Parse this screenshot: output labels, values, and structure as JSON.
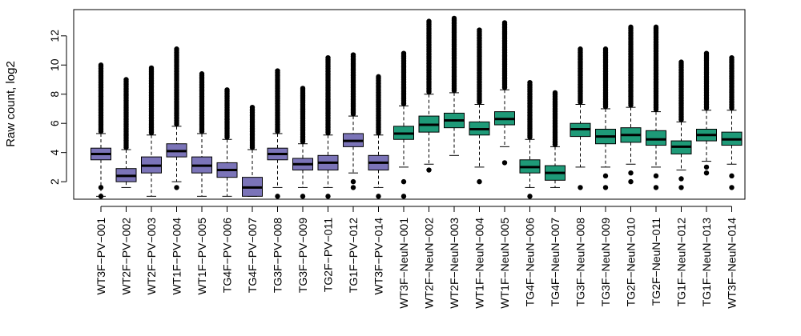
{
  "chart_data": {
    "type": "boxplot",
    "ylabel": "Raw count, log2",
    "xlabel": "",
    "ylim": [
      0.8,
      13.8
    ],
    "yticks": [
      2,
      4,
      6,
      8,
      10,
      12
    ],
    "colors": {
      "PV": "#7b74b8",
      "NeuN": "#1e9a78",
      "outline": "#000000"
    },
    "categories": [
      "WT3F−PV−001",
      "WT2F−PV−002",
      "WT2F−PV−003",
      "WT1F−PV−004",
      "WT1F−PV−005",
      "TG4F−PV−006",
      "TG4F−PV−007",
      "TG3F−PV−008",
      "TG3F−PV−009",
      "TG2F−PV−011",
      "TG1F−PV−012",
      "WT3F−PV−014",
      "WT3F−NeuN−001",
      "WT2F−NeuN−002",
      "WT2F−NeuN−003",
      "WT1F−NeuN−004",
      "WT1F−NeuN−005",
      "TG4F−NeuN−006",
      "TG4F−NeuN−007",
      "TG3F−NeuN−008",
      "TG3F−NeuN−009",
      "TG2F−NeuN−010",
      "TG2F−NeuN−011",
      "TG1F−NeuN−012",
      "TG1F−NeuN−013",
      "WT3F−NeuN−014"
    ],
    "groups": [
      "PV",
      "PV",
      "PV",
      "PV",
      "PV",
      "PV",
      "PV",
      "PV",
      "PV",
      "PV",
      "PV",
      "PV",
      "NeuN",
      "NeuN",
      "NeuN",
      "NeuN",
      "NeuN",
      "NeuN",
      "NeuN",
      "NeuN",
      "NeuN",
      "NeuN",
      "NeuN",
      "NeuN",
      "NeuN",
      "NeuN"
    ],
    "boxes": [
      {
        "min": 1.0,
        "q1": 3.5,
        "median": 3.9,
        "q3": 4.3,
        "max": 5.3,
        "out_low": [
          1.0,
          1.6
        ],
        "out_high_to": 10.0
      },
      {
        "min": 1.6,
        "q1": 2.0,
        "median": 2.4,
        "q3": 2.9,
        "max": 4.2,
        "out_low": [],
        "out_high_to": 9.0
      },
      {
        "min": 1.0,
        "q1": 2.6,
        "median": 3.1,
        "q3": 3.7,
        "max": 5.2,
        "out_low": [],
        "out_high_to": 9.8
      },
      {
        "min": 2.0,
        "q1": 3.7,
        "median": 4.1,
        "q3": 4.6,
        "max": 5.8,
        "out_low": [
          1.6
        ],
        "out_high_to": 11.1
      },
      {
        "min": 1.0,
        "q1": 2.6,
        "median": 3.1,
        "q3": 3.7,
        "max": 5.3,
        "out_low": [],
        "out_high_to": 9.4
      },
      {
        "min": 1.0,
        "q1": 2.3,
        "median": 2.8,
        "q3": 3.3,
        "max": 4.9,
        "out_low": [],
        "out_high_to": 8.3
      },
      {
        "min": 1.0,
        "q1": 1.0,
        "median": 1.6,
        "q3": 2.3,
        "max": 4.2,
        "out_low": [],
        "out_high_to": 7.1
      },
      {
        "min": 1.6,
        "q1": 3.5,
        "median": 3.9,
        "q3": 4.3,
        "max": 5.3,
        "out_low": [
          1.0
        ],
        "out_high_to": 9.6
      },
      {
        "min": 1.6,
        "q1": 2.8,
        "median": 3.2,
        "q3": 3.6,
        "max": 4.6,
        "out_low": [
          1.0
        ],
        "out_high_to": 8.4
      },
      {
        "min": 1.6,
        "q1": 2.8,
        "median": 3.3,
        "q3": 3.8,
        "max": 5.2,
        "out_low": [
          1.0
        ],
        "out_high_to": 10.5
      },
      {
        "min": 2.6,
        "q1": 4.4,
        "median": 4.8,
        "q3": 5.3,
        "max": 6.5,
        "out_low": [
          1.6,
          2.0
        ],
        "out_high_to": 10.7
      },
      {
        "min": 1.6,
        "q1": 2.8,
        "median": 3.3,
        "q3": 3.8,
        "max": 5.2,
        "out_low": [
          1.0
        ],
        "out_high_to": 9.2
      },
      {
        "min": 3.0,
        "q1": 4.9,
        "median": 5.3,
        "q3": 5.8,
        "max": 7.2,
        "out_low": [
          1.0,
          2.0
        ],
        "out_high_to": 10.8
      },
      {
        "min": 3.2,
        "q1": 5.4,
        "median": 5.9,
        "q3": 6.5,
        "max": 8.0,
        "out_low": [
          2.8
        ],
        "out_high_to": 13.0
      },
      {
        "min": 3.8,
        "q1": 5.7,
        "median": 6.2,
        "q3": 6.7,
        "max": 8.1,
        "out_low": [],
        "out_high_to": 13.2
      },
      {
        "min": 3.0,
        "q1": 5.2,
        "median": 5.6,
        "q3": 6.1,
        "max": 7.3,
        "out_low": [
          2.0
        ],
        "out_high_to": 12.4
      },
      {
        "min": 4.4,
        "q1": 5.9,
        "median": 6.3,
        "q3": 6.8,
        "max": 8.3,
        "out_low": [
          3.3
        ],
        "out_high_to": 12.9
      },
      {
        "min": 1.6,
        "q1": 2.6,
        "median": 3.0,
        "q3": 3.5,
        "max": 4.9,
        "out_low": [
          1.0
        ],
        "out_high_to": 8.8
      },
      {
        "min": 1.6,
        "q1": 2.1,
        "median": 2.6,
        "q3": 3.1,
        "max": 4.4,
        "out_low": [],
        "out_high_to": 8.1
      },
      {
        "min": 3.0,
        "q1": 5.1,
        "median": 5.6,
        "q3": 6.0,
        "max": 7.3,
        "out_low": [
          1.6
        ],
        "out_high_to": 11.1
      },
      {
        "min": 3.0,
        "q1": 4.6,
        "median": 5.1,
        "q3": 5.6,
        "max": 7.0,
        "out_low": [
          1.6,
          2.4
        ],
        "out_high_to": 11.1
      },
      {
        "min": 3.2,
        "q1": 4.7,
        "median": 5.2,
        "q3": 5.7,
        "max": 7.1,
        "out_low": [
          2.0,
          2.6
        ],
        "out_high_to": 12.6
      },
      {
        "min": 3.0,
        "q1": 4.5,
        "median": 4.9,
        "q3": 5.5,
        "max": 6.8,
        "out_low": [
          1.6,
          2.4
        ],
        "out_high_to": 12.6
      },
      {
        "min": 2.8,
        "q1": 3.9,
        "median": 4.4,
        "q3": 4.8,
        "max": 6.1,
        "out_low": [
          1.6,
          2.2
        ],
        "out_high_to": 10.2
      },
      {
        "min": 3.4,
        "q1": 4.8,
        "median": 5.2,
        "q3": 5.6,
        "max": 6.9,
        "out_low": [
          2.6,
          3.0
        ],
        "out_high_to": 10.8
      },
      {
        "min": 3.2,
        "q1": 4.5,
        "median": 4.9,
        "q3": 5.4,
        "max": 6.9,
        "out_low": [
          1.6,
          2.4
        ],
        "out_high_to": 10.5
      }
    ]
  }
}
